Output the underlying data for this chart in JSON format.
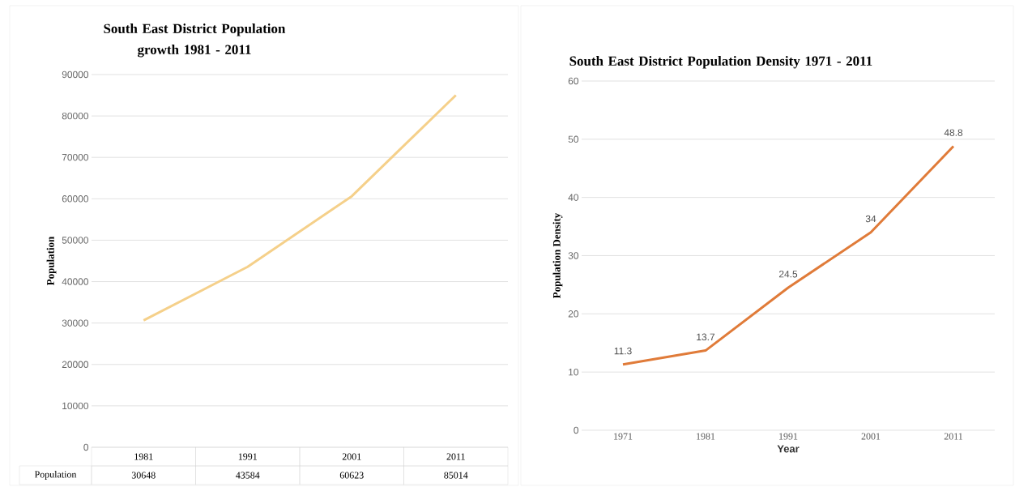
{
  "chart_data": [
    {
      "type": "line",
      "title": "South East District Population growth 1981 - 2011",
      "ylabel": "Population",
      "categories": [
        "1981",
        "1991",
        "2001",
        "2011"
      ],
      "series": [
        {
          "name": "Population",
          "color": "#f5d08a",
          "values": [
            30648,
            43584,
            60623,
            85014
          ]
        }
      ],
      "ylim": [
        0,
        90000
      ],
      "yticks": [
        0,
        10000,
        20000,
        30000,
        40000,
        50000,
        60000,
        70000,
        80000,
        90000
      ],
      "grid": "y",
      "data_labels": true
    },
    {
      "type": "line",
      "title": "South East District Population Density 1971 - 2011",
      "xlabel": "Year",
      "ylabel": "Population Density",
      "categories": [
        "1971",
        "1981",
        "1991",
        "2001",
        "2011"
      ],
      "values": [
        11.3,
        13.7,
        24.5,
        34,
        48.8
      ],
      "color": "#e07b39",
      "ylim": [
        0,
        60
      ],
      "yticks": [
        0,
        10,
        20,
        30,
        40,
        50,
        60
      ],
      "grid": "y",
      "data_labels": true
    }
  ]
}
